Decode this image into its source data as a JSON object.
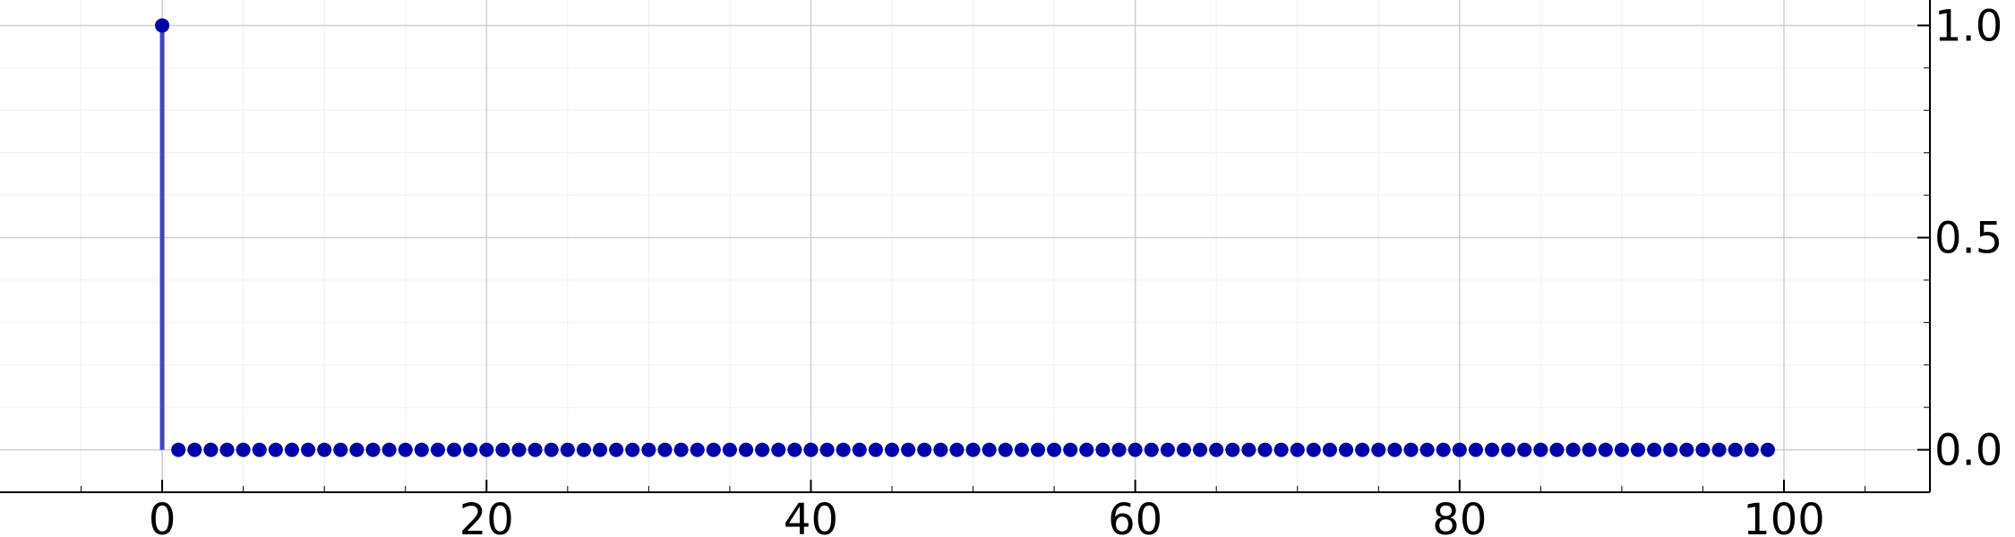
{
  "chart_data": {
    "type": "stem",
    "title": "",
    "xlabel": "",
    "ylabel": "",
    "xlim": [
      -10,
      109
    ],
    "ylim": [
      -0.1,
      1.06
    ],
    "x_ticks": [
      "0",
      "20",
      "40",
      "60",
      "80",
      "100"
    ],
    "x_tick_values": [
      0,
      20,
      40,
      60,
      80,
      100
    ],
    "y_ticks": [
      "0.0",
      "0.5",
      "1.0"
    ],
    "y_tick_values": [
      0.0,
      0.5,
      1.0
    ],
    "y_axis_position": "right",
    "grid": true,
    "minor_grid": true,
    "series": [
      {
        "color": "#0000aa",
        "stem_color": "#4444bb",
        "x_start": 0,
        "x_end": 99,
        "values": [
          1,
          0,
          0,
          0,
          0,
          0,
          0,
          0,
          0,
          0,
          0,
          0,
          0,
          0,
          0,
          0,
          0,
          0,
          0,
          0,
          0,
          0,
          0,
          0,
          0,
          0,
          0,
          0,
          0,
          0,
          0,
          0,
          0,
          0,
          0,
          0,
          0,
          0,
          0,
          0,
          0,
          0,
          0,
          0,
          0,
          0,
          0,
          0,
          0,
          0,
          0,
          0,
          0,
          0,
          0,
          0,
          0,
          0,
          0,
          0,
          0,
          0,
          0,
          0,
          0,
          0,
          0,
          0,
          0,
          0,
          0,
          0,
          0,
          0,
          0,
          0,
          0,
          0,
          0,
          0,
          0,
          0,
          0,
          0,
          0,
          0,
          0,
          0,
          0,
          0,
          0,
          0,
          0,
          0,
          0,
          0,
          0,
          0,
          0,
          0
        ]
      }
    ]
  }
}
